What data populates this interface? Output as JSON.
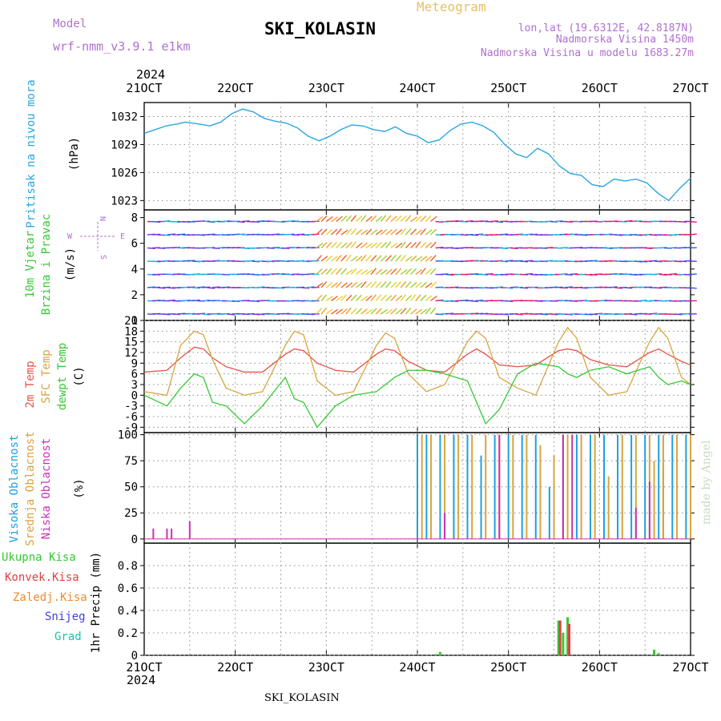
{
  "header": {
    "model_label": "Model",
    "model_name": "wrf-nmm_v3.9.1 e1km",
    "station": "SKI_KOLASIN",
    "meteogram": "Meteogram",
    "lonlat": "lon,lat (19.6312E, 42.8187N)",
    "altitude": "Nadmorska Visina 1450m",
    "model_altitude": "Nadmorska Visina u modelu 1683.27m",
    "footer_station": "SKI_KOLASIN",
    "credit": "made by Angel"
  },
  "time_axis": {
    "year": "2024",
    "labels": [
      "21OCT",
      "22OCT",
      "23OCT",
      "24OCT",
      "25OCT",
      "26OCT",
      "27OCT"
    ]
  },
  "panels": {
    "pressure": {
      "ylabel1": "Pritisak na nivou mora",
      "ylabel2": "(hPa)",
      "ticks": [
        "1023",
        "1026",
        "1029",
        "1032"
      ]
    },
    "wind": {
      "ylabel1": "10m Vjetar",
      "ylabel2": "Brzina i Pravac",
      "ylabel3": "(m/s)",
      "ticks": [
        "0",
        "2",
        "4",
        "6",
        "8"
      ],
      "compass_n": "N",
      "compass_s": "S",
      "compass_w": "W",
      "compass_e": "E"
    },
    "temp": {
      "ylabel1": "2m Temp",
      "ylabel2": "SFC Temp",
      "ylabel3": "dewpt Temp",
      "ylabel4": "(C)",
      "ticks": [
        "-9",
        "-6",
        "-3",
        "0",
        "3",
        "6",
        "9",
        "12",
        "15",
        "18",
        "21"
      ]
    },
    "cloud": {
      "ylabel1": "Visoka Oblacnost",
      "ylabel2": "Srednja Oblacnost",
      "ylabel3": "Niska Oblacnost",
      "ylabel4": "(%)",
      "ticks": [
        "0",
        "25",
        "50",
        "75",
        "100"
      ]
    },
    "precip": {
      "ylabel": "1hr Precip (mm)",
      "ticks": [
        "0",
        "0.2",
        "0.4",
        "0.6",
        "0.8"
      ],
      "legend": [
        "Ukupna Kisa",
        "Konvek.Kisa",
        "Zaledj.Kisa",
        "Snijeg",
        "Grad"
      ]
    }
  },
  "colors": {
    "pressure": "#2aa6e0",
    "t2m": "#e8524a",
    "tsfc": "#d8a440",
    "dewpt": "#35c935",
    "cloud_high": "#1ea0e0",
    "cloud_mid": "#d8a440",
    "cloud_low": "#c832b4",
    "precip_total": "#35c935",
    "precip_conv": "#e04040",
    "precip_frz": "#f08a30",
    "precip_snow": "#4040e0",
    "precip_grad": "#20c0b0",
    "purple_text": "#b070d0",
    "orange_text": "#e8c060"
  },
  "chart_data": [
    {
      "type": "line",
      "panel": "pressure",
      "x_unit": "days since 21OCT 00Z",
      "ylim": [
        1022,
        1033.5
      ],
      "series": [
        {
          "name": "Pritisak na nivou mora",
          "x": [
            0,
            0.2,
            0.4,
            0.6,
            0.75,
            1.0,
            1.2,
            1.4,
            1.6,
            1.8,
            2.0,
            2.2,
            2.4,
            2.6,
            2.8,
            3.0,
            3.2,
            3.4,
            3.6,
            3.8,
            4.0,
            4.2,
            4.4,
            4.6,
            4.8,
            5.0,
            5.2,
            5.4,
            5.6,
            5.8,
            6.0,
            6.2,
            6.4,
            6.6,
            6.8,
            7.0,
            7.2,
            7.4,
            7.6,
            7.8,
            8.0,
            8.2,
            8.4,
            8.6,
            8.8,
            9.0,
            9.2,
            9.4,
            9.6,
            9.8,
            10.0
          ],
          "y": [
            1030.2,
            1030.6,
            1031,
            1031.2,
            1031.4,
            1031.2,
            1031,
            1031.4,
            1032.3,
            1032.8,
            1032.5,
            1031.8,
            1031.5,
            1031.3,
            1030.8,
            1029.9,
            1029.4,
            1029.9,
            1030.6,
            1031.1,
            1031,
            1030.6,
            1030.4,
            1030.9,
            1030.2,
            1029.9,
            1029.2,
            1029.5,
            1030.5,
            1031.2,
            1031.4,
            1031.0,
            1030.3,
            1029.0,
            1028.0,
            1027.6,
            1028.6,
            1028.0,
            1026.7,
            1025.9,
            1025.7,
            1024.7,
            1024.5,
            1025.3,
            1025.1,
            1025.3,
            1024.9,
            1023.8,
            1023.0,
            1024.3,
            1025.4
          ]
        }
      ],
      "xlim": [
        0,
        10
      ],
      "ylabel": "(hPa)"
    },
    {
      "type": "line",
      "panel": "temp",
      "ylim": [
        -10.5,
        21
      ],
      "xlim": [
        0,
        6
      ],
      "series": [
        {
          "name": "2m Temp",
          "x": [
            0,
            0.25,
            0.4,
            0.55,
            0.65,
            0.75,
            0.9,
            1.1,
            1.3,
            1.55,
            1.65,
            1.75,
            1.9,
            2.1,
            2.3,
            2.55,
            2.65,
            2.75,
            2.9,
            3.1,
            3.3,
            3.55,
            3.65,
            3.75,
            3.9,
            4.1,
            4.3,
            4.55,
            4.65,
            4.75,
            4.9,
            5.1,
            5.3,
            5.55,
            5.65,
            5.75,
            5.9,
            6.0
          ],
          "y": [
            6.5,
            7,
            10.5,
            13.5,
            13,
            10.5,
            8,
            6.5,
            6.5,
            11.5,
            13,
            12.5,
            9,
            7,
            6.5,
            11.5,
            13,
            12.5,
            9.5,
            7,
            6.5,
            11.5,
            13,
            11.5,
            8.5,
            8,
            8.5,
            12.5,
            13,
            12.5,
            10,
            8.5,
            8,
            12,
            13,
            11.5,
            9.5,
            8.5
          ]
        },
        {
          "name": "SFC Temp",
          "x": [
            0,
            0.25,
            0.4,
            0.55,
            0.65,
            0.75,
            0.9,
            1.1,
            1.3,
            1.55,
            1.65,
            1.75,
            1.9,
            2.1,
            2.3,
            2.55,
            2.65,
            2.75,
            2.9,
            3.1,
            3.3,
            3.55,
            3.65,
            3.75,
            3.9,
            4.1,
            4.3,
            4.55,
            4.65,
            4.75,
            4.9,
            5.1,
            5.3,
            5.55,
            5.65,
            5.75,
            5.9,
            6.0
          ],
          "y": [
            1,
            0,
            14,
            18,
            17,
            10,
            2,
            0,
            1,
            14,
            18,
            17,
            4,
            0,
            1,
            14,
            17.5,
            16,
            6,
            1,
            3,
            15,
            18,
            16,
            5,
            2,
            0,
            15,
            19,
            16,
            5,
            0,
            1,
            15,
            19,
            16,
            5,
            3
          ]
        },
        {
          "name": "dewpt Temp",
          "x": [
            0,
            0.25,
            0.4,
            0.55,
            0.65,
            0.75,
            0.9,
            1.1,
            1.3,
            1.55,
            1.65,
            1.75,
            1.9,
            2.1,
            2.3,
            2.55,
            2.65,
            2.75,
            2.9,
            3.1,
            3.3,
            3.55,
            3.65,
            3.75,
            3.9,
            4.1,
            4.3,
            4.55,
            4.65,
            4.75,
            4.9,
            5.1,
            5.3,
            5.55,
            5.65,
            5.75,
            5.9,
            6.0
          ],
          "y": [
            0,
            -3,
            2,
            6,
            5,
            -2,
            -3,
            -8,
            -3,
            5,
            -1,
            -2,
            -9,
            -3,
            0,
            1,
            3,
            5,
            7,
            7,
            6,
            4,
            -2,
            -8,
            -4,
            6,
            9,
            8,
            6,
            5,
            7,
            8,
            6,
            8,
            5,
            3,
            4,
            3
          ]
        }
      ]
    },
    {
      "type": "bar",
      "panel": "cloud",
      "ylim": [
        0,
        100
      ],
      "xlim": [
        0,
        6
      ],
      "series": [
        {
          "name": "Visoka Oblacnost",
          "x": [
            3.0,
            3.1,
            3.25,
            3.4,
            3.55,
            3.7,
            3.85,
            4.0,
            4.15,
            4.3,
            4.45,
            4.6,
            4.75,
            4.9,
            5.05,
            5.2,
            5.35,
            5.5,
            5.65,
            5.8,
            5.95,
            6.1,
            6.25
          ],
          "y": [
            100,
            100,
            100,
            100,
            100,
            80,
            100,
            100,
            100,
            100,
            50,
            100,
            100,
            100,
            100,
            100,
            100,
            100,
            100,
            100,
            100,
            0,
            0
          ]
        },
        {
          "name": "Srednja Oblacnost",
          "x": [
            3.05,
            3.15,
            3.3,
            3.45,
            3.6,
            3.75,
            3.9,
            4.05,
            4.2,
            4.35,
            4.5,
            4.65,
            4.8,
            4.95,
            5.1,
            5.25,
            5.4,
            5.55,
            5.7,
            5.85,
            6.0,
            5.6,
            5.7
          ],
          "y": [
            100,
            100,
            100,
            100,
            100,
            100,
            100,
            100,
            100,
            90,
            80,
            100,
            100,
            100,
            60,
            100,
            100,
            100,
            100,
            100,
            100,
            75,
            70
          ]
        },
        {
          "name": "Niska Oblacnost",
          "x": [
            0.1,
            0.25,
            0.3,
            0.5,
            3.3,
            3.9,
            4.6,
            4.7,
            5.4,
            5.55
          ],
          "y": [
            10,
            10,
            10,
            17,
            25,
            100,
            100,
            100,
            30,
            55
          ]
        }
      ]
    },
    {
      "type": "bar",
      "panel": "precip",
      "ylim": [
        0,
        1
      ],
      "xlim": [
        0,
        6
      ],
      "series": [
        {
          "name": "Ukupna Kisa",
          "x": [
            3.2,
            3.25,
            4.55,
            4.6,
            4.65,
            5.6,
            5.65
          ],
          "y": [
            0.01,
            0.03,
            0.31,
            0.2,
            0.34,
            0.05,
            0.02
          ]
        },
        {
          "name": "Konvek.Kisa",
          "x": [
            4.55,
            4.65
          ],
          "y": [
            0.31,
            0.28
          ]
        }
      ]
    }
  ]
}
